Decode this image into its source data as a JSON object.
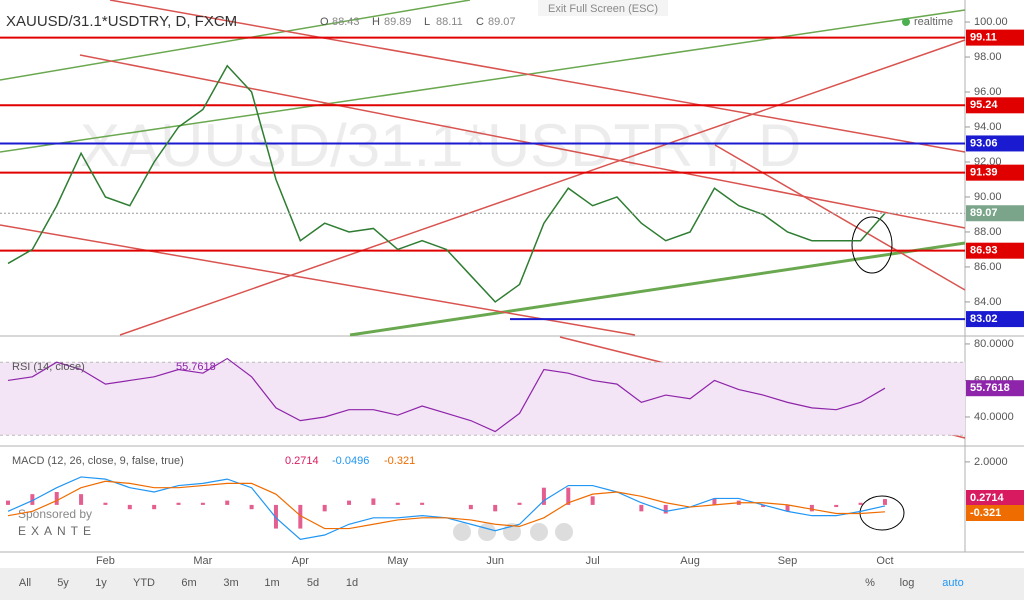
{
  "header": {
    "exit_fullscreen": "Exit Full Screen (ESC)",
    "realtime": "realtime",
    "sponsor": "Sponsored by",
    "sponsor_name": "EXANTE"
  },
  "chart_data": [
    {
      "type": "line",
      "title": "XAUUSD/31.1*USDTRY, D, FXCM",
      "watermark": "XAUUSD/31.1*USDTRY, D",
      "ohlc": [
        {
          "label": "O",
          "value": 88.43
        },
        {
          "label": "H",
          "value": 89.89
        },
        {
          "label": "L",
          "value": 88.11
        },
        {
          "label": "C",
          "value": 89.07
        }
      ],
      "categories": [
        null,
        null,
        null,
        null,
        "Feb",
        null,
        null,
        null,
        "Mar",
        null,
        null,
        null,
        "Apr",
        null,
        null,
        null,
        "May",
        null,
        null,
        null,
        "Jun",
        null,
        null,
        null,
        "Jul",
        null,
        null,
        null,
        "Aug",
        null,
        null,
        null,
        "Sep",
        null,
        null,
        null,
        "Oct"
      ],
      "values": [
        86.2,
        87.0,
        89.5,
        92.5,
        90.0,
        89.5,
        92.0,
        94.0,
        95.0,
        97.5,
        96.0,
        91.0,
        87.5,
        88.5,
        88.0,
        88.2,
        87.0,
        87.5,
        87.0,
        85.5,
        84.0,
        85.0,
        88.5,
        90.5,
        89.5,
        90.0,
        88.5,
        87.5,
        88.0,
        90.5,
        89.5,
        89.0,
        88.0,
        87.5,
        87.5,
        87.5,
        89.07
      ],
      "color": "#2e7d32",
      "ylim": [
        82.11,
        101.26
      ],
      "yticks": [
        {
          "value": 84,
          "label": "84.00"
        },
        {
          "value": 86,
          "label": "86.00"
        },
        {
          "value": 88,
          "label": "88.00"
        },
        {
          "value": 90,
          "label": "90.00"
        },
        {
          "value": 92,
          "label": "92.00"
        },
        {
          "value": 94,
          "label": "94.00"
        },
        {
          "value": 96,
          "label": "96.00"
        },
        {
          "value": 98,
          "label": "98.00"
        },
        {
          "value": 100,
          "label": "100.00"
        }
      ],
      "levels": [
        {
          "value": 99.11,
          "color": "#e00000"
        },
        {
          "value": 95.24,
          "color": "#e00000"
        },
        {
          "value": 93.06,
          "color": "#1a1ad0"
        },
        {
          "value": 91.39,
          "color": "#e00000"
        },
        {
          "value": 86.93,
          "color": "#e00000"
        },
        {
          "value": 83.02,
          "color": "#1a1ad0"
        }
      ],
      "last_color": "#7aa58a"
    },
    {
      "type": "line",
      "title": "RSI (14, close)",
      "color": "#8e24aa",
      "values": [
        60,
        62,
        70,
        66,
        58,
        60,
        62,
        66,
        64,
        72,
        62,
        45,
        38,
        40,
        44,
        44,
        41,
        46,
        42,
        38,
        32,
        42,
        66,
        64,
        60,
        58,
        48,
        52,
        50,
        60,
        55,
        52,
        48,
        45,
        44,
        48,
        55.7618
      ],
      "band": [
        30,
        70
      ],
      "ylim": [
        26.3,
        83.8
      ],
      "yticks": [
        {
          "value": 40,
          "label": "40.0000"
        },
        {
          "value": 60,
          "label": "60.0000"
        },
        {
          "value": 80,
          "label": "80.0000"
        }
      ]
    },
    {
      "type": "macd",
      "title": "MACD (12, 26, close, 9, false, true)",
      "histogram": {
        "color": "#d81b60",
        "values": [
          0.2,
          0.5,
          0.6,
          0.5,
          0.1,
          -0.2,
          -0.2,
          0.1,
          0.1,
          0.2,
          -0.2,
          -1.1,
          -1.1,
          -0.3,
          0.2,
          0.3,
          0.1,
          0.1,
          0.0,
          -0.2,
          -0.3,
          0.1,
          0.8,
          0.8,
          0.4,
          0.0,
          -0.3,
          -0.4,
          0.0,
          0.3,
          0.2,
          -0.1,
          -0.3,
          -0.3,
          -0.1,
          0.1,
          0.2714
        ]
      },
      "macd": {
        "color": "#2196f3",
        "values": [
          -0.3,
          0.2,
          0.8,
          1.3,
          1.2,
          0.8,
          0.6,
          0.9,
          1.0,
          1.2,
          0.8,
          -0.6,
          -1.6,
          -1.4,
          -0.9,
          -0.6,
          -0.6,
          -0.5,
          -0.6,
          -0.9,
          -1.2,
          -0.9,
          0.2,
          0.9,
          0.9,
          0.6,
          0.1,
          -0.3,
          -0.1,
          0.3,
          0.3,
          0.0,
          -0.3,
          -0.5,
          -0.5,
          -0.3,
          -0.0496
        ]
      },
      "signal": {
        "color": "#ef6c00",
        "values": [
          -0.5,
          -0.3,
          0.2,
          0.8,
          1.1,
          1.0,
          0.8,
          0.8,
          0.9,
          1.0,
          1.0,
          0.5,
          -0.5,
          -1.1,
          -1.1,
          -0.9,
          -0.7,
          -0.6,
          -0.6,
          -0.7,
          -0.9,
          -1.0,
          -0.6,
          0.1,
          0.5,
          0.6,
          0.4,
          0.1,
          -0.1,
          0.0,
          0.1,
          0.1,
          0.0,
          -0.2,
          -0.4,
          -0.4,
          -0.321
        ]
      },
      "ylim": [
        -2.19,
        2.46
      ],
      "yticks": [
        {
          "value": 2,
          "label": "2.0000"
        }
      ]
    }
  ],
  "toolbar": {
    "ranges": [
      "All",
      "5y",
      "1y",
      "YTD",
      "6m",
      "3m",
      "1m",
      "5d",
      "1d"
    ],
    "options": [
      "%",
      "log",
      "auto"
    ]
  }
}
